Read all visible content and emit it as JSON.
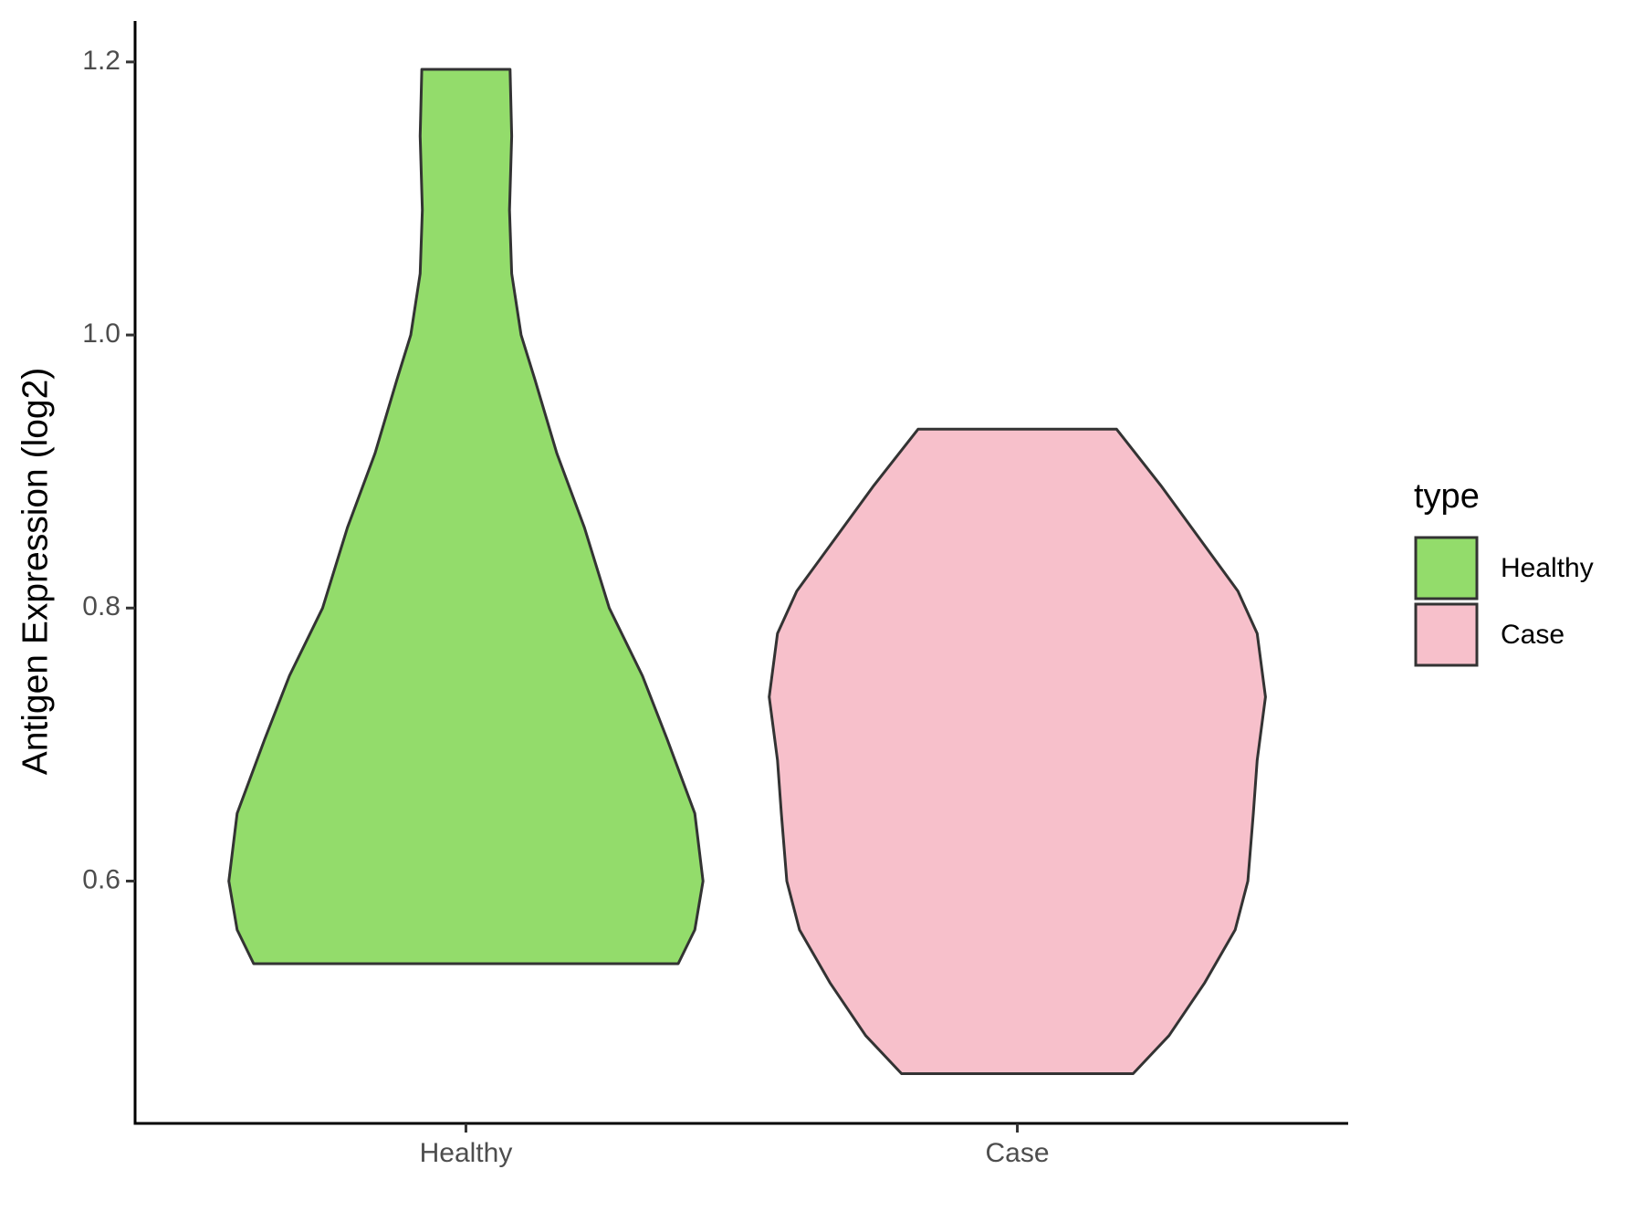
{
  "chart_data": {
    "type": "violin",
    "y_label": "Antigen Expression (log2)",
    "legend_title": "type",
    "legend": "right",
    "categories": [
      "Healthy",
      "Case"
    ],
    "series": [
      {
        "name": "Healthy",
        "color": "#93dc6b",
        "y": [
          0.5395,
          0.5643,
          0.6,
          0.6496,
          0.7039,
          0.7504,
          0.8,
          0.8589,
          0.9132,
          0.9674,
          1.0,
          1.045,
          1.0915,
          1.1457,
          1.1946
        ],
        "half_width": [
          0.385,
          0.415,
          0.43,
          0.415,
          0.365,
          0.32,
          0.26,
          0.215,
          0.165,
          0.125,
          0.1,
          0.083,
          0.079,
          0.083,
          0.08
        ]
      },
      {
        "name": "Case",
        "color": "#f7c0cb",
        "y": [
          0.4589,
          0.4868,
          0.5256,
          0.5643,
          0.6,
          0.6496,
          0.6884,
          0.7349,
          0.7814,
          0.8124,
          0.8512,
          0.8899,
          0.931
        ],
        "half_width": [
          0.21,
          0.275,
          0.34,
          0.395,
          0.418,
          0.428,
          0.435,
          0.45,
          0.435,
          0.4,
          0.33,
          0.26,
          0.18
        ]
      }
    ],
    "ylim": [
      0.4225,
      1.23
    ],
    "yticks": [
      0.6,
      0.8,
      {
        "value": 1,
        "label": "1.0"
      },
      1.2
    ]
  }
}
